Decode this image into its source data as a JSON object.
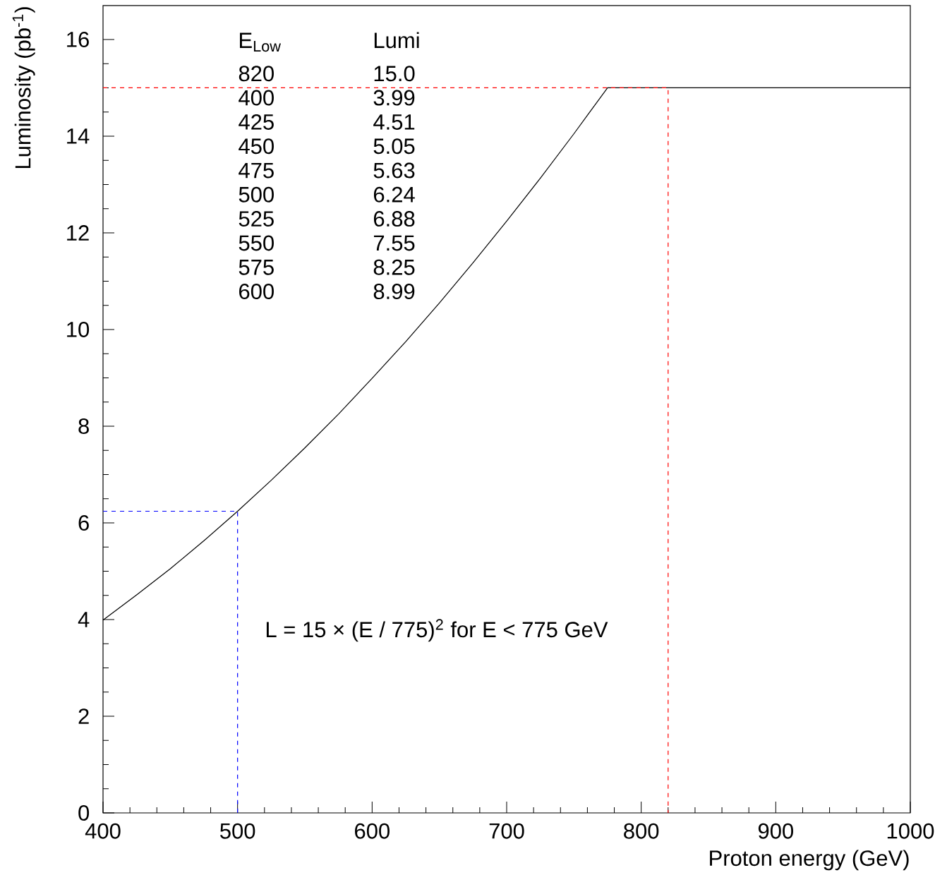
{
  "chart_data": {
    "type": "line",
    "xlabel": "Proton energy (GeV)",
    "ylabel": "Luminosity (pb$^{-1}$)",
    "xlim": [
      400,
      1000
    ],
    "ylim": [
      0,
      16.7
    ],
    "xticks": [
      400,
      500,
      600,
      700,
      800,
      900,
      1000
    ],
    "yticks": [
      0,
      2,
      4,
      6,
      8,
      10,
      12,
      14,
      16
    ],
    "grid": false,
    "series": [
      {
        "color": "#000000",
        "line_style": "solid",
        "x": [
          400,
          425,
          450,
          475,
          500,
          525,
          550,
          575,
          600,
          625,
          650,
          675,
          700,
          725,
          750,
          760,
          770,
          775,
          780,
          1000
        ],
        "values": [
          3.99,
          4.51,
          5.05,
          5.63,
          6.24,
          6.88,
          7.55,
          8.25,
          8.99,
          9.75,
          10.55,
          11.38,
          12.24,
          13.13,
          14.05,
          14.43,
          14.81,
          15.0,
          15.0,
          15.0
        ]
      },
      {
        "color": "#ff0000",
        "line_style": "dashed",
        "x": [
          400,
          820,
          820
        ],
        "values": [
          15.0,
          15.0,
          0
        ]
      },
      {
        "color": "#0000ff",
        "line_style": "dashed",
        "x": [
          400,
          500,
          500
        ],
        "values": [
          6.24,
          6.24,
          0
        ]
      }
    ],
    "annotations": [
      "L = 15 × (E / 775)$^{2}$ for E < 775 GeV",
      "E$_{Low}$",
      "Lumi",
      "820",
      "15.0",
      "400",
      "3.99",
      "425",
      "4.51",
      "450",
      "5.05",
      "475",
      "5.63",
      "500",
      "6.24",
      "525",
      "6.88",
      "550",
      "7.55",
      "575",
      "8.25",
      "600",
      "8.99"
    ]
  }
}
